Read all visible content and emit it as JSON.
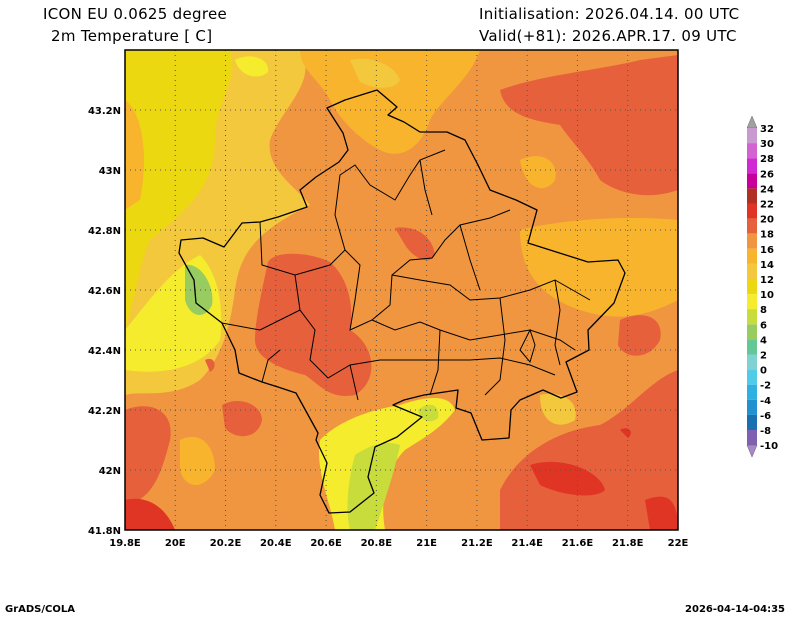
{
  "header": {
    "model": "ICON EU 0.0625 degree",
    "variable": "2m Temperature [ C]",
    "init": "Initialisation: 2026.04.14. 00 UTC",
    "valid": "Valid(+81): 2026.APR.17. 09 UTC"
  },
  "map": {
    "lat_labels": [
      "43.2N",
      "43N",
      "42.8N",
      "42.6N",
      "42.4N",
      "42.2N",
      "42N",
      "41.8N"
    ],
    "lat_values": [
      43.2,
      43.0,
      42.8,
      42.6,
      42.4,
      42.2,
      42.0,
      41.8
    ],
    "lon_labels": [
      "19.8E",
      "20E",
      "20.2E",
      "20.4E",
      "20.6E",
      "20.8E",
      "21E",
      "21.2E",
      "21.4E",
      "21.6E",
      "21.8E",
      "22E"
    ],
    "lon_values": [
      19.8,
      20.0,
      20.2,
      20.4,
      20.6,
      20.8,
      21.0,
      21.2,
      21.4,
      21.6,
      21.8,
      22.0
    ],
    "lat_range": [
      41.8,
      43.4
    ],
    "lon_range": [
      19.8,
      22.0
    ]
  },
  "colorbar": {
    "labels": [
      "32",
      "30",
      "28",
      "26",
      "24",
      "22",
      "20",
      "18",
      "16",
      "14",
      "12",
      "10",
      "8",
      "6",
      "4",
      "2",
      "0",
      "-2",
      "-4",
      "-6",
      "-8",
      "-10"
    ],
    "colors": [
      "#c89ad0",
      "#d264d2",
      "#d22ad2",
      "#c8009a",
      "#b03024",
      "#e03424",
      "#e6603c",
      "#f09640",
      "#f8b42c",
      "#f4c83c",
      "#ecd810",
      "#f4ec2c",
      "#c8dc3c",
      "#98cc60",
      "#64c896",
      "#80d2d2",
      "#50cce8",
      "#30b0e0",
      "#2092d2",
      "#1870b0",
      "#8060b0"
    ],
    "over_color": "#a0a0a0",
    "under_color": "#a888c8"
  },
  "footer": {
    "left": "GrADS/COLA",
    "right": "2026-04-14-04:35"
  }
}
